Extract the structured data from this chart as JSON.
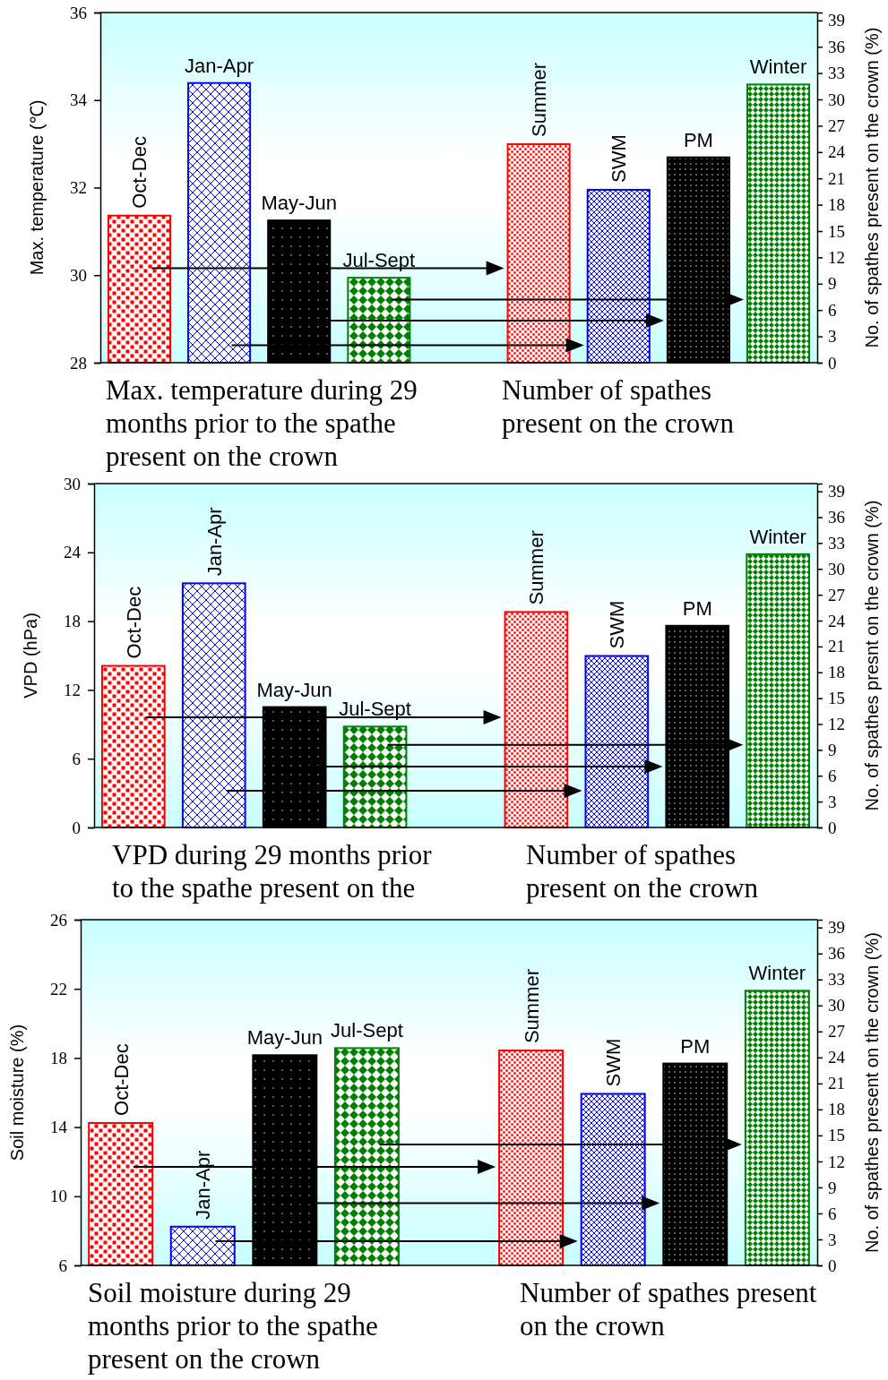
{
  "chart_data": [
    {
      "type": "bar",
      "categories": [
        "Oct-Dec",
        "Jan-Apr",
        "May-Jun",
        "Jul-Sept",
        null,
        "Summer",
        "SWM",
        "PM",
        "Winter"
      ],
      "series": [
        {
          "colors": [
            "#ff0000",
            "#0000ff",
            "#000000",
            "#008000",
            null,
            null,
            null,
            null,
            null
          ],
          "values": [
            31.36,
            34.39,
            31.25,
            29.94,
            null,
            null,
            null,
            null,
            null
          ]
        },
        {
          "axis": "y2",
          "colors": [
            null,
            null,
            null,
            null,
            null,
            "#ff0000",
            "#0000ff",
            "#000000",
            "#008000"
          ],
          "values": [
            null,
            null,
            null,
            null,
            null,
            24.9,
            19.7,
            23.4,
            31.7
          ]
        }
      ],
      "ylabel": "Max. temperature (℃)",
      "y2label": "No. of spathes present on the crown (%)",
      "ylim": [
        28,
        36
      ],
      "yticks": [
        28,
        30,
        32,
        34,
        36
      ],
      "y2lim": [
        0,
        39.9
      ],
      "y2ticks": [
        0,
        3,
        6,
        9,
        12,
        15,
        18,
        21,
        24,
        27,
        30,
        33,
        36,
        39
      ],
      "annotations": [
        "Max. temperature during 29 months prior to the spathe present on the crown",
        "Number of spathes present on the crown"
      ]
    },
    {
      "type": "bar",
      "categories": [
        "Oct-Dec",
        "Jan-Apr",
        "May-Jun",
        "Jul-Sept",
        null,
        "Summer",
        "SWM",
        "PM",
        "Winter"
      ],
      "series": [
        {
          "colors": [
            "#ff0000",
            "#0000ff",
            "#000000",
            "#008000",
            null,
            null,
            null,
            null,
            null
          ],
          "values": [
            14.1,
            21.3,
            10.5,
            8.8,
            null,
            null,
            null,
            null,
            null
          ]
        },
        {
          "axis": "y2",
          "colors": [
            null,
            null,
            null,
            null,
            null,
            "#ff0000",
            "#0000ff",
            "#000000",
            "#008000"
          ],
          "values": [
            null,
            null,
            null,
            null,
            null,
            25.0,
            19.9,
            23.4,
            31.7
          ]
        }
      ],
      "ylabel": "VPD (hPa)",
      "y2label": "No. of spathes presnt on the crown (%)",
      "ylim": [
        0,
        30
      ],
      "yticks": [
        0,
        6,
        12,
        18,
        24,
        30
      ],
      "y2lim": [
        0,
        39.9
      ],
      "y2ticks": [
        0,
        3,
        6,
        9,
        12,
        15,
        18,
        21,
        24,
        27,
        30,
        33,
        36,
        39
      ],
      "annotations": [
        "VPD during 29 months prior to the spathe present on the",
        "Number of spathes present on the crown"
      ]
    },
    {
      "type": "bar",
      "categories": [
        "Oct-Dec",
        "Jan-Apr",
        "May-Jun",
        "Jul-Sept",
        null,
        "Summer",
        "SWM",
        "PM",
        "Winter"
      ],
      "series": [
        {
          "colors": [
            "#ff0000",
            "#0000ff",
            "#000000",
            "#008000",
            null,
            null,
            null,
            null,
            null
          ],
          "values": [
            14.24,
            8.24,
            18.16,
            18.57,
            null,
            null,
            null,
            null,
            null
          ]
        },
        {
          "axis": "y2",
          "colors": [
            null,
            null,
            null,
            null,
            null,
            "#ff0000",
            "#0000ff",
            "#000000",
            "#008000"
          ],
          "values": [
            null,
            null,
            null,
            null,
            null,
            24.8,
            19.8,
            23.3,
            31.7
          ]
        }
      ],
      "ylabel": "Soil moisture (%)",
      "y2label": "No. of spathes present on the crown (%)",
      "ylim": [
        6,
        26
      ],
      "yticks": [
        6,
        10,
        14,
        18,
        22,
        26
      ],
      "y2lim": [
        0,
        39.9
      ],
      "y2ticks": [
        0,
        3,
        6,
        9,
        12,
        15,
        18,
        21,
        24,
        27,
        30,
        33,
        36,
        39
      ],
      "annotations": [
        "Soil moisture during 29 months prior to the spathe present on the crown",
        "Number of spathes present on the crown"
      ]
    }
  ]
}
